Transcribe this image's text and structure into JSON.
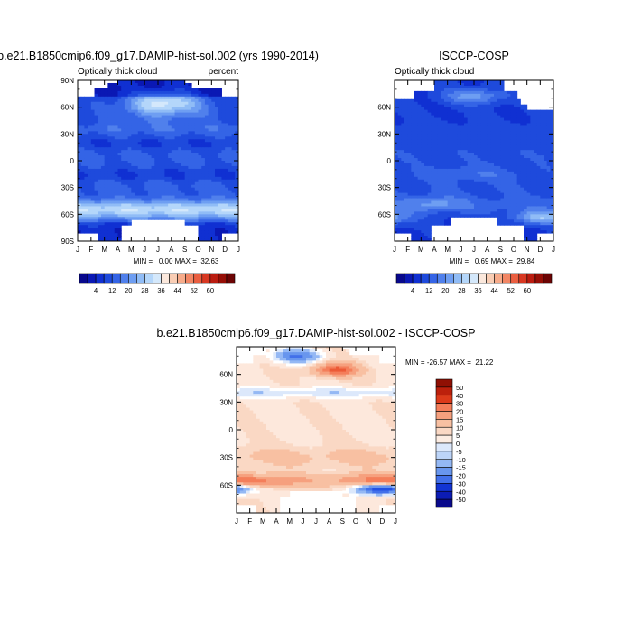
{
  "colors": {
    "abs_palette": [
      "#08088c",
      "#0a18b4",
      "#1030d2",
      "#1e4adc",
      "#3464e6",
      "#5080ec",
      "#6e9ef2",
      "#90bcf6",
      "#b4d6fa",
      "#d4e8fb",
      "#fbe8dc",
      "#f9cdb4",
      "#f7ab8a",
      "#f28664",
      "#ea5e40",
      "#d83822",
      "#ba1c10",
      "#960e06",
      "#6c0404"
    ],
    "diff_palette": [
      "#0a0a8c",
      "#0c1cb4",
      "#1234d4",
      "#2250e4",
      "#4270ea",
      "#6896ee",
      "#94b8f4",
      "#bcd4f8",
      "#dce8fb",
      "#ffffff",
      "#fcece2",
      "#fad8c4",
      "#f8c0a2",
      "#f6a07e",
      "#f47e5a",
      "#ec5a36",
      "#dc3a1a",
      "#bc200c",
      "#901004"
    ]
  },
  "chart_data": [
    {
      "type": "heatmap",
      "title": "b.e21.B1850cmip6.f09_g17.DAMIP-hist-sol.002 (yrs 1990-2014)",
      "subtitle_left": "Optically thick cloud",
      "subtitle_right": "percent",
      "x_ticks": [
        "J",
        "F",
        "M",
        "A",
        "M",
        "J",
        "J",
        "A",
        "S",
        "O",
        "N",
        "D",
        "J"
      ],
      "y_ticks": [
        "90N",
        "60N",
        "30N",
        "0",
        "30S",
        "60S",
        "90S"
      ],
      "x_range": [
        0,
        12
      ],
      "y_range": [
        -90,
        90
      ],
      "stats": "MIN =   0.00 MAX =  32.63",
      "min": 0.0,
      "max": 32.63,
      "colorbar_ticks": [
        "4",
        "12",
        "20",
        "28",
        "36",
        "44",
        "52",
        "60"
      ],
      "levels": [
        0,
        4,
        8,
        12,
        16,
        20,
        24,
        28,
        32,
        36,
        40,
        44,
        48,
        52,
        56,
        60,
        64
      ],
      "colorbar_orientation": "horizontal",
      "field": "model"
    },
    {
      "type": "heatmap",
      "title": "ISCCP-COSP",
      "subtitle_left": "Optically thick cloud",
      "x_ticks": [
        "J",
        "F",
        "M",
        "A",
        "M",
        "J",
        "J",
        "A",
        "S",
        "O",
        "N",
        "D",
        "J"
      ],
      "y_ticks": [
        "60N",
        "30N",
        "0",
        "30S",
        "60S"
      ],
      "x_range": [
        0,
        12
      ],
      "y_range": [
        -90,
        90
      ],
      "stats": "MIN =   0.69 MAX =  29.84",
      "min": 0.69,
      "max": 29.84,
      "colorbar_ticks": [
        "4",
        "12",
        "20",
        "28",
        "36",
        "44",
        "52",
        "60"
      ],
      "levels": [
        0,
        4,
        8,
        12,
        16,
        20,
        24,
        28,
        32,
        36,
        40,
        44,
        48,
        52,
        56,
        60,
        64
      ],
      "colorbar_orientation": "horizontal",
      "field": "obs"
    },
    {
      "type": "heatmap",
      "title": "b.e21.B1850cmip6.f09_g17.DAMIP-hist-sol.002 - ISCCP-COSP",
      "x_ticks": [
        "J",
        "F",
        "M",
        "A",
        "M",
        "J",
        "J",
        "A",
        "S",
        "O",
        "N",
        "D",
        "J"
      ],
      "y_ticks": [
        "60N",
        "30N",
        "0",
        "30S",
        "60S"
      ],
      "x_range": [
        0,
        12
      ],
      "y_range": [
        -90,
        90
      ],
      "stats": "MIN = -26.57 MAX =  21.22",
      "min": -26.57,
      "max": 21.22,
      "colorbar_ticks": [
        "50",
        "40",
        "30",
        "20",
        "15",
        "10",
        "5",
        "0",
        "-5",
        "-10",
        "-15",
        "-20",
        "-30",
        "-40",
        "-50"
      ],
      "levels": [
        -50,
        -40,
        -30,
        -20,
        -15,
        -10,
        -5,
        0,
        5,
        10,
        15,
        20,
        30,
        40,
        50
      ],
      "colorbar_orientation": "vertical",
      "field": "diff"
    }
  ]
}
